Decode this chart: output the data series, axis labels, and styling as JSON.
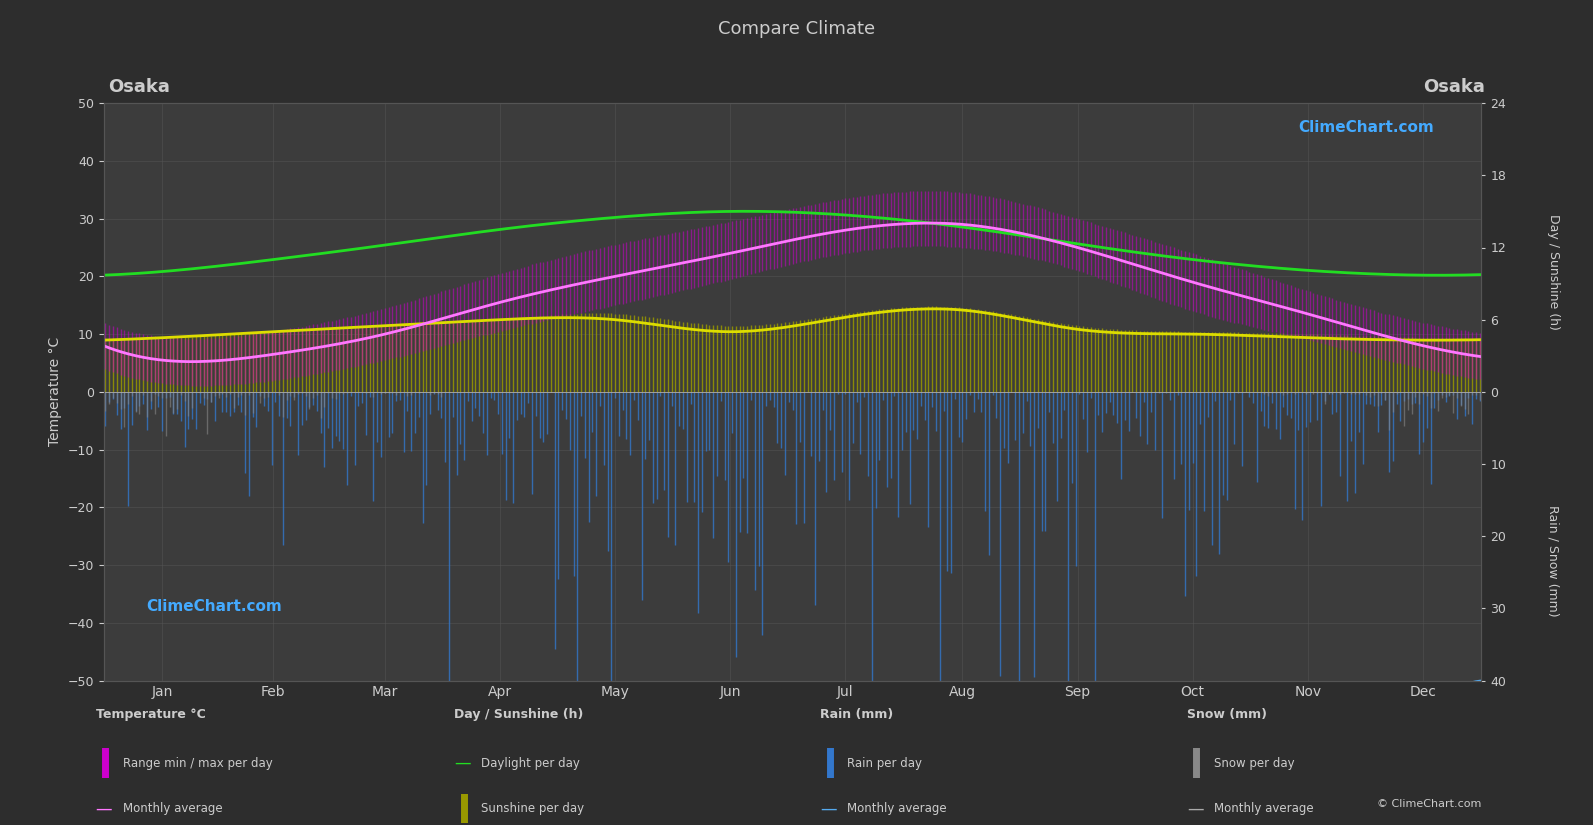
{
  "title": "Compare Climate",
  "city_left": "Osaka",
  "city_right": "Osaka",
  "background_color": "#2d2d2d",
  "plot_bg_color": "#3c3c3c",
  "text_color": "#cccccc",
  "grid_color": "#555555",
  "ylim_left": [
    -50,
    50
  ],
  "months": [
    "Jan",
    "Feb",
    "Mar",
    "Apr",
    "May",
    "Jun",
    "Jul",
    "Aug",
    "Sep",
    "Oct",
    "Nov",
    "Dec"
  ],
  "temp_avg_monthly": [
    5.5,
    6.5,
    10.0,
    15.5,
    20.0,
    24.0,
    28.0,
    29.0,
    25.0,
    19.0,
    13.5,
    8.0
  ],
  "temp_max_monthly": [
    9.5,
    10.5,
    14.5,
    20.5,
    25.5,
    29.5,
    33.5,
    34.5,
    30.0,
    24.0,
    17.5,
    12.0
  ],
  "temp_min_monthly": [
    1.5,
    2.0,
    5.5,
    10.5,
    15.0,
    19.5,
    24.0,
    25.0,
    21.0,
    14.0,
    9.0,
    4.0
  ],
  "daylight_monthly": [
    10.0,
    11.0,
    12.2,
    13.5,
    14.5,
    15.0,
    14.7,
    13.7,
    12.3,
    11.0,
    10.1,
    9.7
  ],
  "sunshine_monthly_h": [
    4.5,
    5.0,
    5.5,
    6.0,
    6.5,
    5.5,
    6.5,
    7.0,
    5.5,
    5.0,
    4.8,
    4.5
  ],
  "sunshine_avg_monthly_h": [
    4.5,
    5.0,
    5.5,
    6.0,
    6.0,
    5.0,
    6.2,
    6.8,
    5.2,
    4.8,
    4.5,
    4.3
  ],
  "rain_daily_scale": [
    4.0,
    5.0,
    7.0,
    8.0,
    11.0,
    14.0,
    11.0,
    10.0,
    12.0,
    8.0,
    6.0,
    4.0
  ],
  "snow_daily_scale": [
    2.5,
    1.5,
    0.3,
    0.0,
    0.0,
    0.0,
    0.0,
    0.0,
    0.0,
    0.0,
    0.3,
    1.5
  ],
  "color_daylight": "#22dd22",
  "color_sunshine_bar": "#999900",
  "color_sunshine_avg": "#dddd00",
  "color_temp_avg": "#ff77ff",
  "color_temp_range_bar": "#cc00cc",
  "color_rain_bar": "#3377cc",
  "color_rain_avg": "#55aaee",
  "color_snow_bar": "#888888",
  "color_snow_avg": "#aaaaaa",
  "sunshine_scale_max": 24,
  "rain_scale_max": 40
}
